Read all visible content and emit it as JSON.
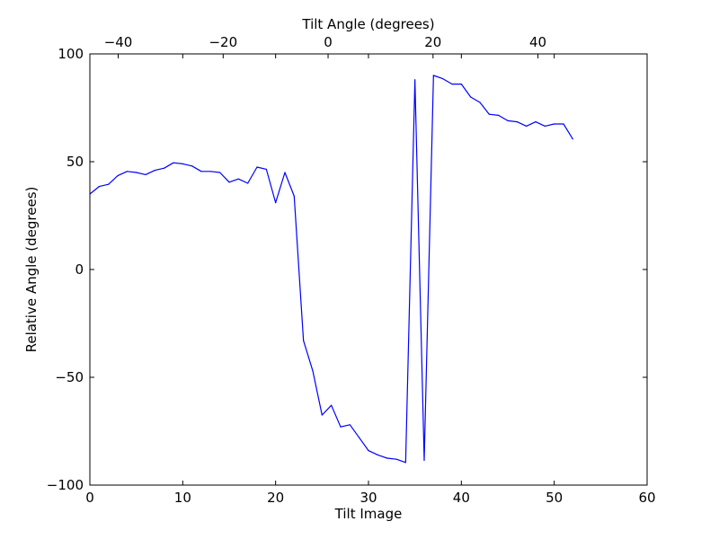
{
  "chart_data": {
    "type": "line",
    "title": "",
    "xlabel": "Tilt Image",
    "ylabel": "Relative Angle (degrees)",
    "top_xlabel": "Tilt Angle (degrees)",
    "xlim": [
      0,
      60
    ],
    "ylim": [
      -100,
      100
    ],
    "top_xlim": [
      -45.4,
      60.8
    ],
    "x_ticks": [
      0,
      10,
      20,
      30,
      40,
      50,
      60
    ],
    "y_ticks": [
      -100,
      -50,
      0,
      50,
      100
    ],
    "top_x_ticks": [
      -40,
      -20,
      0,
      20,
      40
    ],
    "tick_labels": {
      "x": [
        "0",
        "10",
        "20",
        "30",
        "40",
        "50",
        "60"
      ],
      "y": [
        "−100",
        "−50",
        "0",
        "50",
        "100"
      ],
      "top_x": [
        "−40",
        "−20",
        "0",
        "20",
        "40"
      ]
    },
    "grid": false,
    "legend": "none",
    "line_color": "#0000ff",
    "series": [
      {
        "x": [
          0,
          1,
          2,
          3,
          4,
          5,
          6,
          7,
          8,
          9,
          10,
          11,
          12,
          13,
          14,
          15,
          16,
          17,
          18,
          19,
          20,
          21,
          22,
          23,
          24,
          25,
          26,
          27,
          28,
          29,
          30,
          31,
          32,
          33,
          34,
          35,
          36,
          37,
          38,
          39,
          40,
          41,
          42,
          43,
          44,
          45,
          46,
          47,
          48,
          49,
          50,
          51,
          52
        ],
        "y": [
          35,
          38.5,
          39.5,
          43.5,
          45.5,
          45,
          44,
          46,
          47,
          49.5,
          49,
          48,
          45.5,
          45.5,
          45,
          40.5,
          42,
          40,
          47.5,
          46.5,
          31,
          45,
          34,
          -33,
          -47,
          -67.5,
          -63,
          -73,
          -72,
          -78,
          -84,
          -86,
          -87.5,
          -88,
          -89.5,
          88,
          -88.5,
          90,
          88.5,
          86,
          86,
          80,
          77.5,
          72,
          71.5,
          69,
          68.5,
          66.5,
          68.5,
          66.5,
          67.5,
          67.5,
          60.5
        ]
      }
    ]
  }
}
